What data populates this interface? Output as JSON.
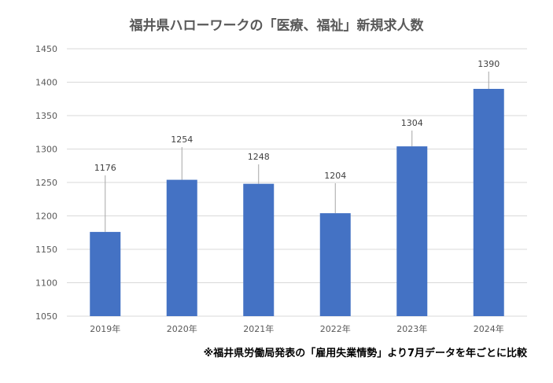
{
  "chart_data": {
    "type": "bar",
    "title": "福井県ハローワークの「医療、福祉」新規求人数",
    "categories": [
      "2019年",
      "2020年",
      "2021年",
      "2022年",
      "2023年",
      "2024年"
    ],
    "values": [
      1176,
      1254,
      1248,
      1204,
      1304,
      1390
    ],
    "xlabel": "",
    "ylabel": "",
    "ylim": [
      1050,
      1450
    ],
    "yticks": [
      1050,
      1100,
      1150,
      1200,
      1250,
      1300,
      1350,
      1400,
      1450
    ],
    "grid": true,
    "bar_color": "#4472C4",
    "annotation": "※福井県労働局発表の「雇用失業情勢」より7月データを年ごとに比較"
  }
}
